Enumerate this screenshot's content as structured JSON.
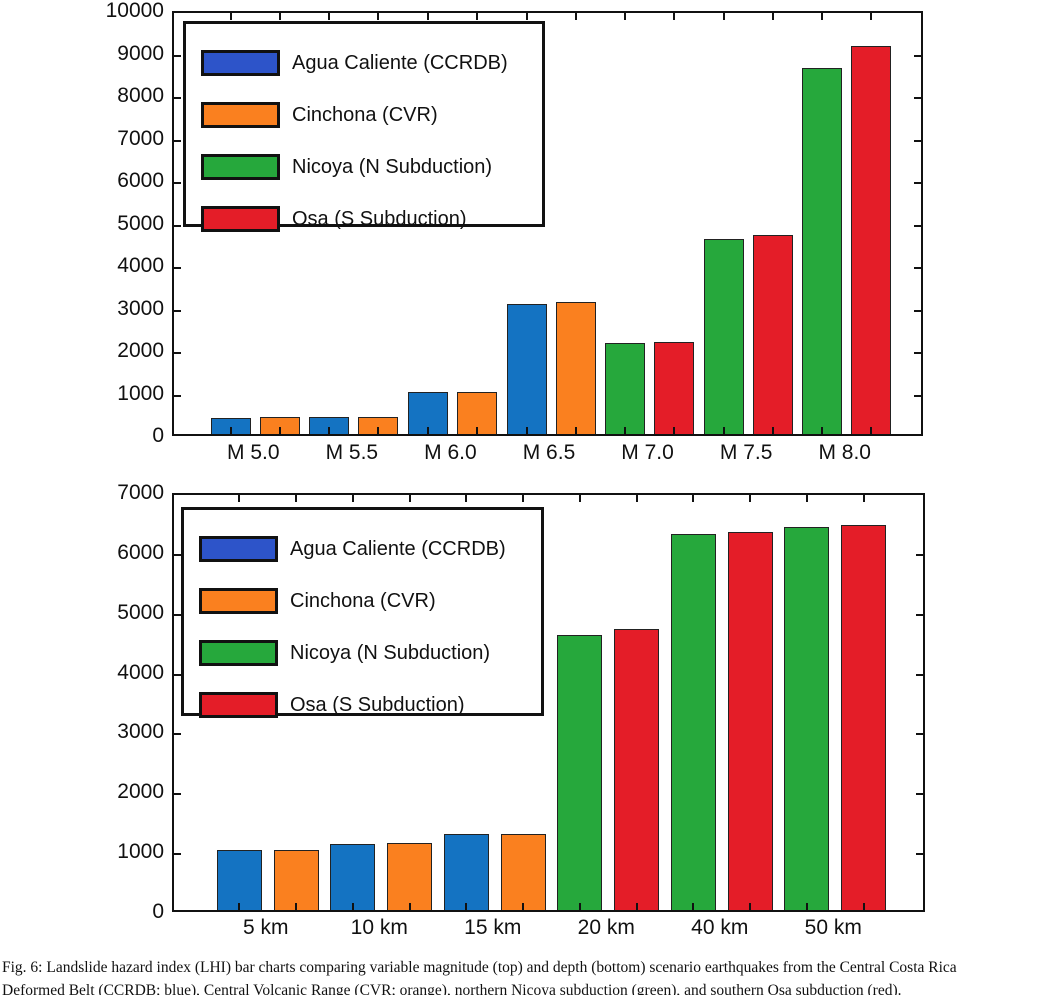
{
  "colors": {
    "bar_blue": "#1473c2",
    "legend_blue": "#2d54c9",
    "orange": "#fa801f",
    "green": "#26a83c",
    "red": "#e41d28",
    "axis": "#111111"
  },
  "legend": {
    "items": [
      {
        "label": "Agua Caliente (CCRDB)",
        "color": "legend_blue"
      },
      {
        "label": "Cinchona (CVR)",
        "color": "orange"
      },
      {
        "label": "Nicoya (N Subduction)",
        "color": "green"
      },
      {
        "label": "Osa (S Subduction)",
        "color": "red"
      }
    ]
  },
  "chart_data": [
    {
      "type": "bar",
      "name": "magnitude-chart",
      "title": "",
      "xlabel": "",
      "ylabel": "",
      "categories": [
        "M 5.0",
        "M 5.5",
        "M 6.0",
        "M 6.5",
        "M 7.0",
        "M 7.5",
        "M 8.0"
      ],
      "series": [
        {
          "name": "Agua Caliente (CCRDB)",
          "color": "bar_blue",
          "values": [
            380,
            400,
            1000,
            3070,
            null,
            null,
            null
          ]
        },
        {
          "name": "Cinchona (CVR)",
          "color": "orange",
          "values": [
            390,
            400,
            1000,
            3100,
            null,
            null,
            null
          ]
        },
        {
          "name": "Nicoya (N Subduction)",
          "color": "green",
          "values": [
            null,
            null,
            null,
            null,
            2140,
            4580,
            8620
          ]
        },
        {
          "name": "Osa (S Subduction)",
          "color": "red",
          "values": [
            null,
            null,
            null,
            null,
            2170,
            4690,
            9140
          ]
        }
      ],
      "ylim": [
        0,
        10000
      ],
      "ytick_step": 1000,
      "ytick_labels": [
        "0",
        "1000",
        "2000",
        "3000",
        "4000",
        "5000",
        "6000",
        "7000",
        "8000",
        "9000",
        "10000"
      ],
      "grid": false,
      "legend_position": "upper-left"
    },
    {
      "type": "bar",
      "name": "depth-chart",
      "title": "",
      "xlabel": "",
      "ylabel": "",
      "categories": [
        "5 km",
        "10 km",
        "15 km",
        "20 km",
        "40 km",
        "50 km"
      ],
      "series": [
        {
          "name": "Agua Caliente (CCRDB)",
          "color": "bar_blue",
          "values": [
            1000,
            1110,
            1270,
            null,
            null,
            null
          ]
        },
        {
          "name": "Cinchona (CVR)",
          "color": "orange",
          "values": [
            1010,
            1120,
            1270,
            null,
            null,
            null
          ]
        },
        {
          "name": "Nicoya (N Subduction)",
          "color": "green",
          "values": [
            null,
            null,
            null,
            4600,
            6290,
            6400
          ]
        },
        {
          "name": "Osa (S Subduction)",
          "color": "red",
          "values": [
            null,
            null,
            null,
            4690,
            6310,
            6440
          ]
        }
      ],
      "ylim": [
        0,
        7000
      ],
      "ytick_step": 1000,
      "ytick_labels": [
        "0",
        "1000",
        "2000",
        "3000",
        "4000",
        "5000",
        "6000",
        "7000"
      ],
      "grid": false,
      "legend_position": "upper-left"
    }
  ],
  "caption": {
    "line1": "Fig. 6: Landslide hazard index (LHI) bar charts comparing variable magnitude (top) and depth (bottom) scenario earthquakes from the Central Costa Rica",
    "line2": "Deformed Belt (CCRDB; blue), Central Volcanic Range (CVR; orange), northern Nicoya subduction (green), and southern Osa subduction (red)."
  }
}
